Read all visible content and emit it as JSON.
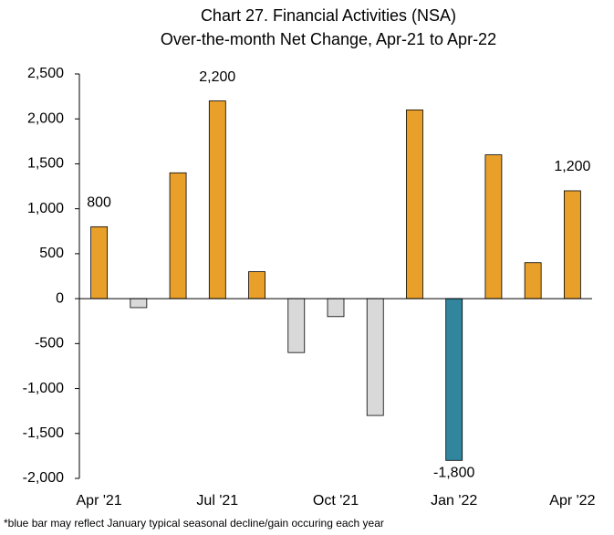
{
  "chart_data": {
    "type": "bar",
    "title": "Chart 27. Financial Activities (NSA)",
    "subtitle": "Over-the-month Net Change, Apr-21 to Apr-22",
    "categories": [
      "Apr '21",
      null,
      null,
      "Jul '21",
      null,
      null,
      "Oct '21",
      null,
      null,
      "Jan '22",
      null,
      null,
      "Apr '22"
    ],
    "values": [
      800,
      -100,
      1400,
      2200,
      300,
      -600,
      -200,
      -1300,
      2100,
      -1800,
      1600,
      400,
      1200
    ],
    "value_labels": [
      "800",
      null,
      null,
      "2,200",
      null,
      null,
      null,
      null,
      null,
      "-1,800",
      null,
      null,
      "1,200"
    ],
    "colors": [
      "#E9A02A",
      "#D9D9D9",
      "#E9A02A",
      "#E9A02A",
      "#E9A02A",
      "#D9D9D9",
      "#D9D9D9",
      "#D9D9D9",
      "#E9A02A",
      "#31859C",
      "#E9A02A",
      "#E9A02A",
      "#E9A02A"
    ],
    "ylim": [
      -2000,
      2500
    ],
    "yticks": [
      {
        "value": -2000,
        "label": "-2,000"
      },
      {
        "value": -1500,
        "label": "-1,500"
      },
      {
        "value": -1000,
        "label": "-1,000"
      },
      -500,
      0,
      500,
      {
        "value": 1000,
        "label": "1,000"
      },
      {
        "value": 1500,
        "label": "1,500"
      },
      {
        "value": 2000,
        "label": "2,000"
      },
      {
        "value": 2500,
        "label": "2,500"
      }
    ],
    "grid": false,
    "footnote": "*blue bar may reflect January typical seasonal decline/gain occuring each year"
  }
}
